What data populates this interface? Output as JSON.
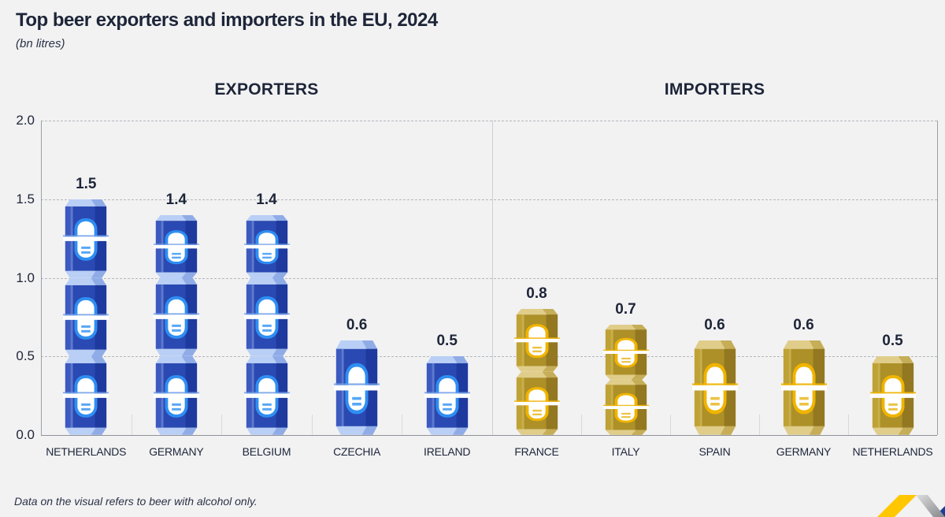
{
  "title": "Top beer exporters and importers in the EU, 2024",
  "subtitle": "(bn litres)",
  "footnote": "Data on the visual refers to beer with alcohol only.",
  "y_axis": {
    "max": 2.0,
    "ticks": [
      0.0,
      0.5,
      1.0,
      1.5,
      2.0
    ],
    "tick_labels": [
      "0.0",
      "0.5",
      "1.0",
      "1.5",
      "2.0"
    ]
  },
  "panels": [
    {
      "id": "exporters",
      "label": "EXPORTERS",
      "theme": "blue",
      "items": [
        {
          "label": "NETHERLANDS",
          "value": 1.5,
          "value_label": "1.5",
          "segments": [
            0.5,
            0.5,
            0.5
          ]
        },
        {
          "label": "GERMANY",
          "value": 1.4,
          "value_label": "1.4",
          "segments": [
            0.5,
            0.5,
            0.4
          ]
        },
        {
          "label": "BELGIUM",
          "value": 1.4,
          "value_label": "1.4",
          "segments": [
            0.5,
            0.5,
            0.4
          ]
        },
        {
          "label": "CZECHIA",
          "value": 0.6,
          "value_label": "0.6",
          "segments": [
            0.6
          ]
        },
        {
          "label": "IRELAND",
          "value": 0.5,
          "value_label": "0.5",
          "segments": [
            0.5
          ]
        }
      ]
    },
    {
      "id": "importers",
      "label": "IMPORTERS",
      "theme": "gold",
      "items": [
        {
          "label": "FRANCE",
          "value": 0.8,
          "value_label": "0.8",
          "segments": [
            0.4,
            0.4
          ]
        },
        {
          "label": "ITALY",
          "value": 0.7,
          "value_label": "0.7",
          "segments": [
            0.35,
            0.35
          ]
        },
        {
          "label": "SPAIN",
          "value": 0.6,
          "value_label": "0.6",
          "segments": [
            0.6
          ]
        },
        {
          "label": "GERMANY",
          "value": 0.6,
          "value_label": "0.6",
          "segments": [
            0.6
          ]
        },
        {
          "label": "NETHERLANDS",
          "value": 0.5,
          "value_label": "0.5",
          "segments": [
            0.5
          ]
        }
      ]
    }
  ],
  "colors": {
    "background": "#f2f2f3",
    "text": "#1d2538",
    "can_blue_body": "#2a49b2",
    "can_blue_emblem": "#2f8ef2",
    "can_gold_body": "#ad9028",
    "can_gold_emblem": "#f0b400",
    "gridline": "#b4b7bc",
    "logo_yellow": "#ffc700",
    "logo_blue": "#1c3e95"
  },
  "chart_data": {
    "type": "bar",
    "title": "Top beer exporters and importers in the EU, 2024",
    "subtitle": "(bn litres)",
    "ylabel": "",
    "xlabel": "",
    "ylim": [
      0,
      2.0
    ],
    "yticks": [
      0.0,
      0.5,
      1.0,
      1.5,
      2.0
    ],
    "grid": "horizontal-dashed",
    "legend_position": "none",
    "groups": [
      {
        "name": "EXPORTERS",
        "categories": [
          "NETHERLANDS",
          "GERMANY",
          "BELGIUM",
          "CZECHIA",
          "IRELAND"
        ],
        "values": [
          1.5,
          1.4,
          1.4,
          0.6,
          0.5
        ],
        "bar_style": "stacked blue beer cans"
      },
      {
        "name": "IMPORTERS",
        "categories": [
          "FRANCE",
          "ITALY",
          "SPAIN",
          "GERMANY",
          "NETHERLANDS"
        ],
        "values": [
          0.8,
          0.7,
          0.6,
          0.6,
          0.5
        ],
        "bar_style": "stacked gold beer cans"
      }
    ],
    "footnote": "Data on the visual refers to beer with alcohol only."
  }
}
